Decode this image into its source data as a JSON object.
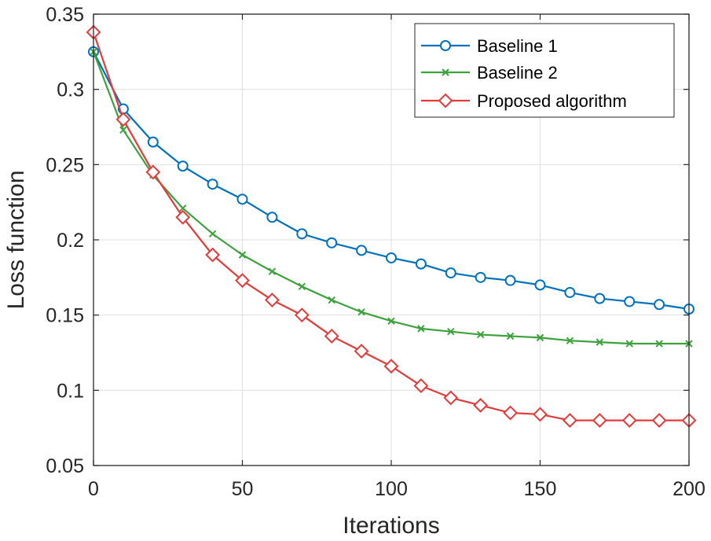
{
  "chart_data": {
    "type": "line",
    "title": "",
    "xlabel": "Iterations",
    "ylabel": "Loss function",
    "xlim": [
      0,
      200
    ],
    "ylim": [
      0.05,
      0.35
    ],
    "xticks": [
      0,
      50,
      100,
      150,
      200
    ],
    "xtick_labels": [
      "0",
      "50",
      "100",
      "150",
      "200"
    ],
    "yticks": [
      0.05,
      0.1,
      0.15,
      0.2,
      0.25,
      0.3,
      0.35
    ],
    "ytick_labels": [
      "0.05",
      "0.1",
      "0.15",
      "0.2",
      "0.25",
      "0.3",
      "0.35"
    ],
    "grid": true,
    "legend_position": "top-right",
    "x": [
      0,
      10,
      20,
      30,
      40,
      50,
      60,
      70,
      80,
      90,
      100,
      110,
      120,
      130,
      140,
      150,
      160,
      170,
      180,
      190,
      200
    ],
    "series": [
      {
        "name": "Baseline 1",
        "color": "#0072BD",
        "marker": "circle",
        "values": [
          0.325,
          0.287,
          0.265,
          0.249,
          0.237,
          0.227,
          0.215,
          0.204,
          0.198,
          0.193,
          0.188,
          0.184,
          0.178,
          0.175,
          0.173,
          0.17,
          0.165,
          0.161,
          0.159,
          0.157,
          0.154
        ]
      },
      {
        "name": "Baseline 2",
        "color": "#3DA23D",
        "marker": "x",
        "values": [
          0.325,
          0.273,
          0.243,
          0.221,
          0.204,
          0.19,
          0.179,
          0.169,
          0.16,
          0.152,
          0.146,
          0.141,
          0.139,
          0.137,
          0.136,
          0.135,
          0.133,
          0.132,
          0.131,
          0.131,
          0.131
        ]
      },
      {
        "name": "Proposed algorithm",
        "color": "#E33B3B",
        "marker": "diamond",
        "values": [
          0.338,
          0.28,
          0.245,
          0.215,
          0.19,
          0.173,
          0.16,
          0.15,
          0.136,
          0.126,
          0.116,
          0.103,
          0.095,
          0.09,
          0.085,
          0.084,
          0.08,
          0.08,
          0.08,
          0.08,
          0.08
        ]
      }
    ]
  }
}
